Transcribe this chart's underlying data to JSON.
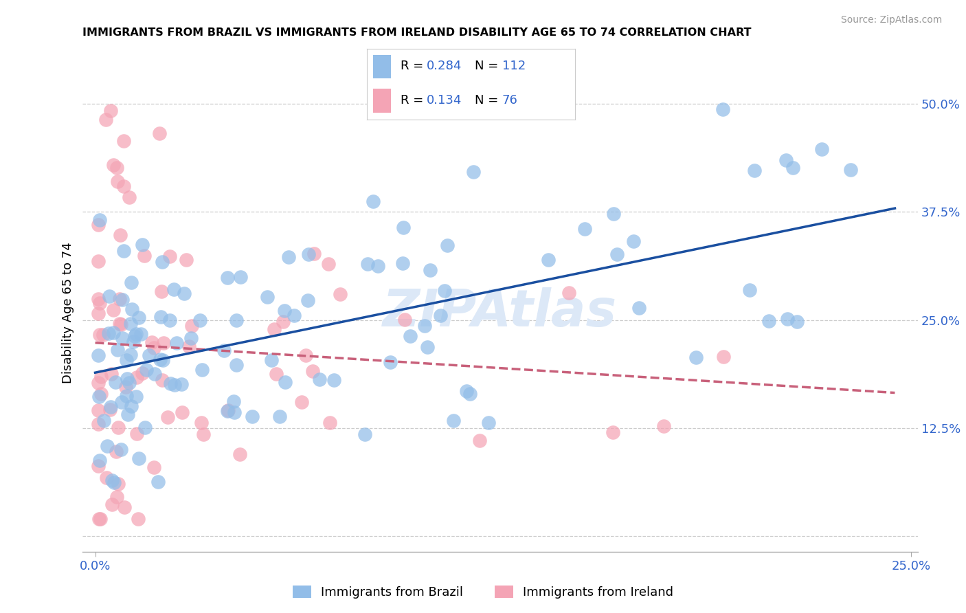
{
  "title": "IMMIGRANTS FROM BRAZIL VS IMMIGRANTS FROM IRELAND DISABILITY AGE 65 TO 74 CORRELATION CHART",
  "source": "Source: ZipAtlas.com",
  "ylabel_label": "Disability Age 65 to 74",
  "legend_brazil": "Immigrants from Brazil",
  "legend_ireland": "Immigrants from Ireland",
  "brazil_R": "0.284",
  "brazil_N": "112",
  "ireland_R": "0.134",
  "ireland_N": "76",
  "brazil_color": "#92bde8",
  "ireland_color": "#f4a4b5",
  "brazil_line_color": "#1a4fa0",
  "ireland_line_color": "#c8607a",
  "grid_color": "#cccccc",
  "tick_color": "#3366cc",
  "watermark_text": "ZIPAtlas",
  "watermark_color": "#dce8f7",
  "xlim_min": 0.0,
  "xlim_max": 0.25,
  "ylim_min": 0.0,
  "ylim_max": 0.5,
  "xticks": [
    0.0,
    0.25
  ],
  "xtick_labels": [
    "0.0%",
    "25.0%"
  ],
  "yticks": [
    0.0,
    0.125,
    0.25,
    0.375,
    0.5
  ],
  "ytick_labels": [
    "",
    "12.5%",
    "25.0%",
    "37.5%",
    "50.0%"
  ],
  "title_fontsize": 11.5,
  "source_fontsize": 10,
  "tick_fontsize": 13,
  "legend_fontsize": 13
}
